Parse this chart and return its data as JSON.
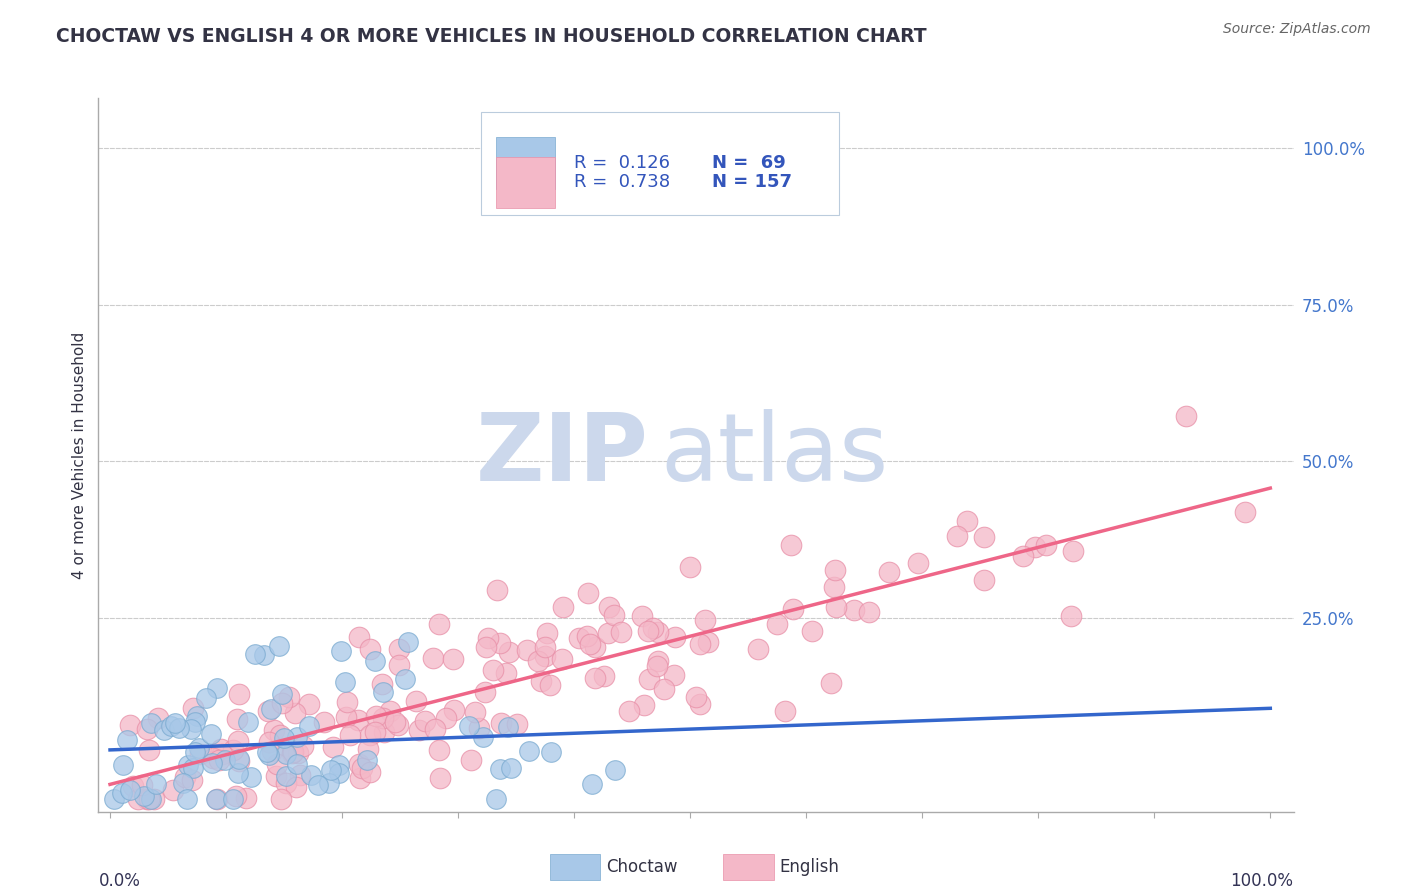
{
  "title": "CHOCTAW VS ENGLISH 4 OR MORE VEHICLES IN HOUSEHOLD CORRELATION CHART",
  "source": "Source: ZipAtlas.com",
  "ylabel": "4 or more Vehicles in Household",
  "choctaw_color": "#a8c8e8",
  "choctaw_edge_color": "#7aaad0",
  "english_color": "#f4b8c8",
  "english_edge_color": "#e890a8",
  "choctaw_line_color": "#3366cc",
  "english_line_color": "#ee6688",
  "legend_text_color": "#3355bb",
  "legend_n_color": "#3355bb",
  "ytick_color": "#4477cc",
  "axis_color": "#aaaaaa",
  "grid_color": "#cccccc",
  "title_color": "#333344",
  "source_color": "#666666",
  "watermark_color": "#dde8f5",
  "background_color": "#ffffff",
  "watermark_zip_color": "#ccd8ec",
  "watermark_atlas_color": "#ccd8ec",
  "choctaw_R": 0.126,
  "choctaw_N": 69,
  "english_R": 0.738,
  "english_N": 157,
  "xlim": [
    0,
    1
  ],
  "ylim": [
    -0.06,
    1.08
  ],
  "ytick_positions": [
    0.0,
    0.25,
    0.5,
    0.75,
    1.0
  ],
  "ytick_labels": [
    "",
    "25.0%",
    "50.0%",
    "75.0%",
    "100.0%"
  ],
  "choctaw_seed": 77,
  "english_seed": 42
}
